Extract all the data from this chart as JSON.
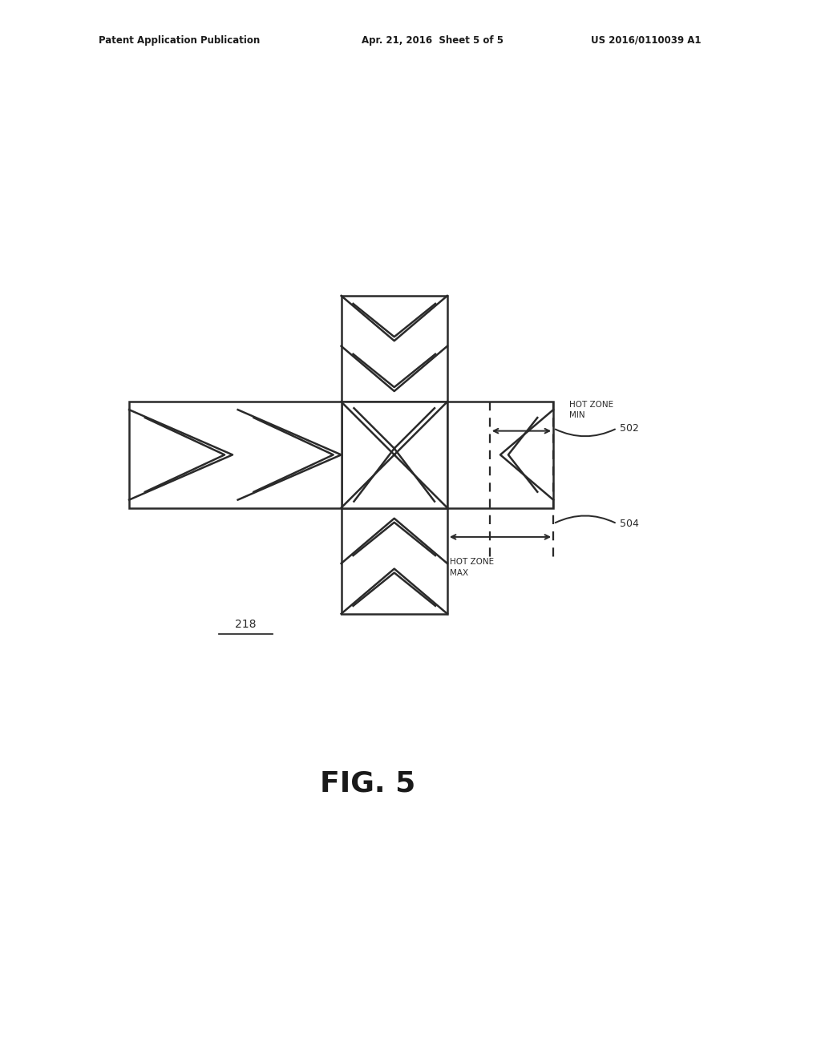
{
  "bg_color": "#ffffff",
  "line_color": "#2a2a2a",
  "line_width": 1.8,
  "header_text_left": "Patent Application Publication",
  "header_text_mid": "Apr. 21, 2016  Sheet 5 of 5",
  "header_text_right": "US 2016/0110039 A1",
  "fig_label": "FIG. 5",
  "label_218": "218",
  "label_502": "502",
  "label_504": "504",
  "label_hot_zone_min": "HOT ZONE\nMIN",
  "label_hot_zone_max": "HOT ZONE\nMAX",
  "cell_size": 1.0
}
